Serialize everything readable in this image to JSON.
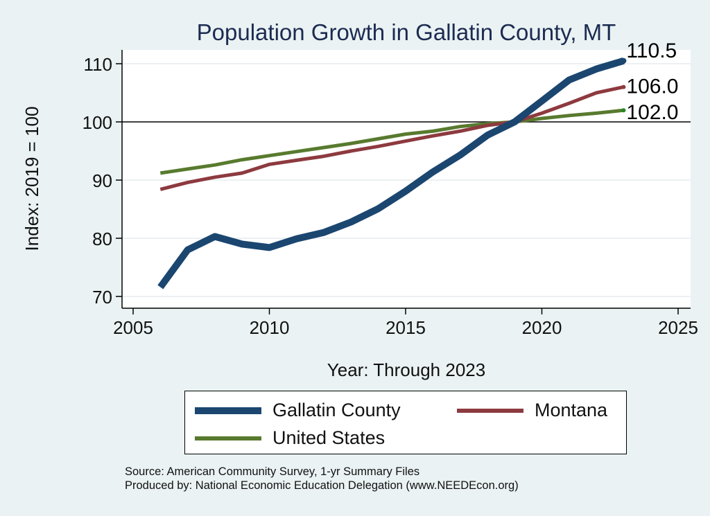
{
  "colors": {
    "background": "#eaf2f3",
    "plot_background": "#ffffff",
    "gridline": "#e6ecee",
    "title_color": "#1c2b52",
    "axis_color": "#000000"
  },
  "chart_data": {
    "type": "line",
    "title": "Population Growth in Gallatin County, MT",
    "xlabel": "Year: Through 2023",
    "ylabel": "Index: 2019 = 100",
    "xlim": [
      2005,
      2025
    ],
    "ylim": [
      68,
      112
    ],
    "x_ticks": [
      "2005",
      "2010",
      "2015",
      "2020",
      "2025"
    ],
    "y_ticks": [
      "70",
      "80",
      "90",
      "100",
      "110"
    ],
    "reference_line": 100,
    "grid": true,
    "legend_position": "bottom",
    "x": [
      2006,
      2007,
      2008,
      2009,
      2010,
      2011,
      2012,
      2013,
      2014,
      2015,
      2016,
      2017,
      2018,
      2019,
      2020,
      2021,
      2022,
      2023
    ],
    "series": [
      {
        "name": "Gallatin  County",
        "color": "#1b4670",
        "values": [
          71.6,
          78.0,
          80.3,
          79.0,
          78.4,
          79.9,
          81.0,
          82.8,
          85.1,
          88.1,
          91.4,
          94.3,
          97.7,
          100.0,
          103.6,
          107.2,
          109.1,
          110.5
        ],
        "end_label": "110.5"
      },
      {
        "name": "Montana",
        "color": "#8d3a3f",
        "values": [
          88.4,
          89.6,
          90.5,
          91.2,
          92.7,
          93.4,
          94.1,
          95.0,
          95.8,
          96.7,
          97.6,
          98.4,
          99.4,
          100.0,
          101.5,
          103.2,
          105.0,
          106.0
        ],
        "end_label": "106.0"
      },
      {
        "name": "United States",
        "color": "#587a2e",
        "values": [
          91.2,
          91.9,
          92.6,
          93.5,
          94.2,
          94.9,
          95.6,
          96.3,
          97.1,
          97.9,
          98.4,
          99.2,
          99.7,
          100.0,
          100.6,
          101.1,
          101.5,
          102.0
        ],
        "end_label": "102.0"
      }
    ]
  },
  "footer": {
    "source": "Source: American Community Survey, 1-yr Summary Files",
    "produced_by": "Produced by: National Economic Education Delegation (www.NEEDEcon.org)"
  }
}
